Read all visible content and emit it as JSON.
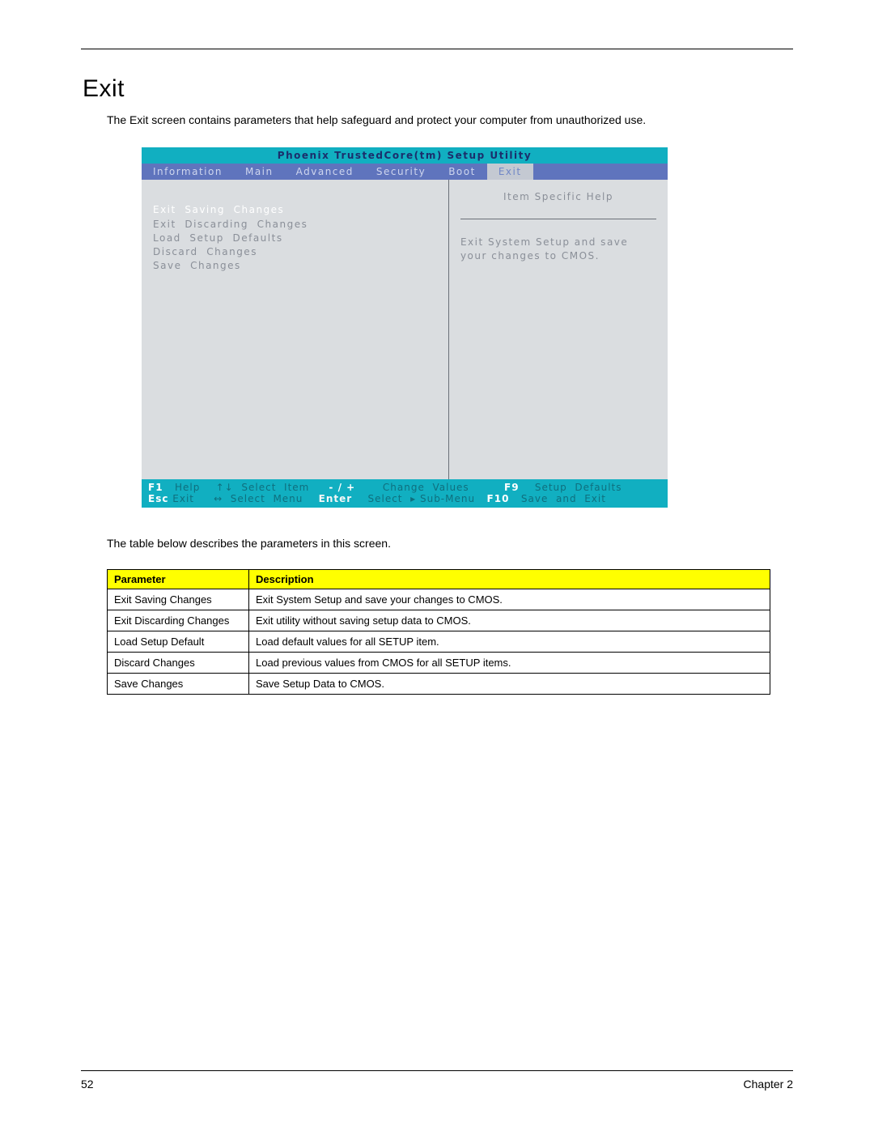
{
  "section": {
    "title": "Exit",
    "intro": "The Exit screen contains parameters that help safeguard and protect your computer from unauthorized use."
  },
  "bios": {
    "title": "Phoenix  TrustedCore(tm)  Setup  Utility",
    "tabs": [
      "Information",
      "Main",
      "Advanced",
      "Security",
      "Boot",
      "Exit"
    ],
    "active_tab_index": 5,
    "menu": {
      "selected": "Exit  Saving  Changes",
      "items": [
        "Exit  Discarding  Changes",
        "Load  Setup  Defaults",
        "Discard  Changes",
        "Save  Changes"
      ]
    },
    "help": {
      "header": "Item  Specific  Help",
      "text": "Exit  System  Setup  and save  your  changes  to CMOS."
    },
    "footer": {
      "row1": {
        "k1": "F1",
        "t1": "Help",
        "icon1": "↑↓",
        "t2": "Select  Item",
        "k2": "- / +",
        "t3": "Change  Values",
        "k3": "F9",
        "t4": "Setup  Defaults"
      },
      "row2": {
        "k1": "Esc",
        "t1": "Exit",
        "icon1": "↔",
        "t2": "Select  Menu",
        "k2": "Enter",
        "t3": "Select  ▸ Sub-Menu",
        "k3": "F10",
        "t4": "Save  and  Exit"
      }
    },
    "colors": {
      "teal": "#11afc1",
      "tabbar": "#5f74bd",
      "tab_fg": "#cfd6ee",
      "active_tab_bg": "#c4c9d2",
      "active_tab_fg": "#6f86c6",
      "body_bg": "#dadde0",
      "body_fg": "#8a8f98",
      "title_fg": "#1b2e6c",
      "footer_key": "#ffffff",
      "footer_text": "#0f6f7e"
    }
  },
  "table_intro": "The table below describes the parameters in this screen.",
  "table": {
    "headers": [
      "Parameter",
      "Description"
    ],
    "rows": [
      [
        "Exit Saving Changes",
        "Exit System Setup and save your changes to CMOS."
      ],
      [
        "Exit Discarding Changes",
        "Exit utility without saving setup data to CMOS."
      ],
      [
        "Load Setup Default",
        "Load default values for all SETUP item."
      ],
      [
        "Discard Changes",
        "Load previous values from CMOS for all SETUP items."
      ],
      [
        "Save Changes",
        "Save Setup Data to CMOS."
      ]
    ]
  },
  "footer": {
    "page": "52",
    "chapter": "Chapter 2"
  }
}
